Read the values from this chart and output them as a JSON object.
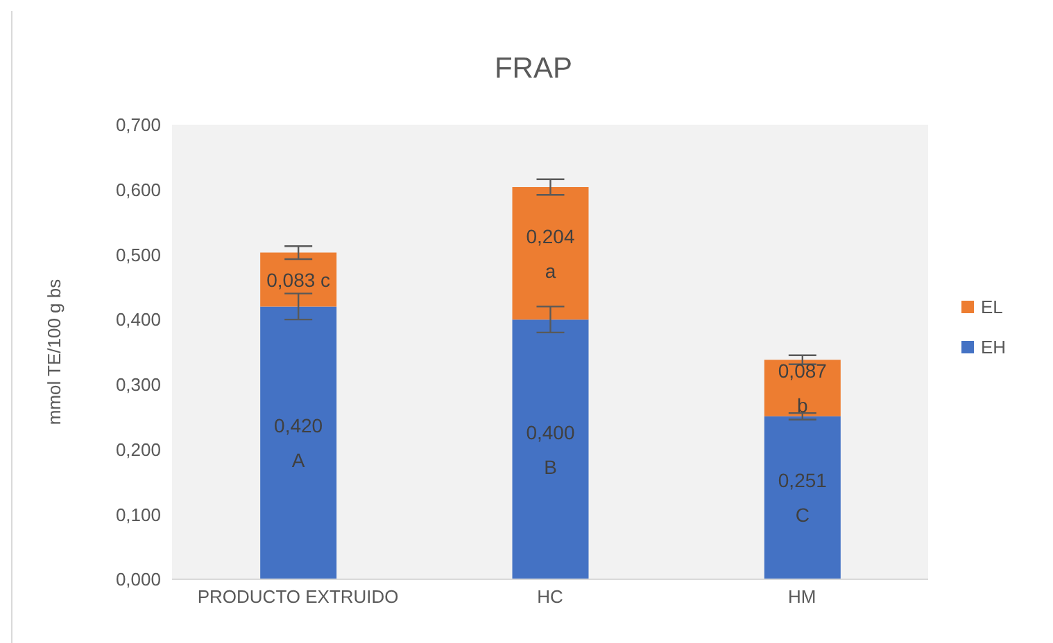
{
  "chart_data": {
    "type": "bar",
    "title": "FRAP",
    "ylabel": "mmol TE/100 g bs",
    "categories": [
      "PRODUCTO EXTRUIDO",
      "HC",
      "HM"
    ],
    "stacked": true,
    "series": [
      {
        "name": "EH",
        "color": "#4472c4",
        "values": [
          0.42,
          0.4,
          0.251
        ],
        "errors": [
          0.02,
          0.02,
          0.005
        ],
        "value_labels": [
          "0,420\nA",
          "0,400\nB",
          "0,251\nC"
        ]
      },
      {
        "name": "EL",
        "color": "#ed7d31",
        "values": [
          0.083,
          0.204,
          0.087
        ],
        "errors": [
          0.01,
          0.012,
          0.007
        ],
        "value_labels": [
          "0,083 c",
          "0,204\na",
          "0,087\nb"
        ]
      }
    ],
    "ylim": [
      0,
      0.7
    ],
    "yticks": [
      {
        "value": 0,
        "label": "0,000"
      },
      {
        "value": 0.1,
        "label": "0,100"
      },
      {
        "value": 0.2,
        "label": "0,200"
      },
      {
        "value": 0.3,
        "label": "0,300"
      },
      {
        "value": 0.4,
        "label": "0,400"
      },
      {
        "value": 0.5,
        "label": "0,500"
      },
      {
        "value": 0.6,
        "label": "0,600"
      },
      {
        "value": 0.7,
        "label": "0,700"
      }
    ],
    "grid": false,
    "legend": "right"
  }
}
